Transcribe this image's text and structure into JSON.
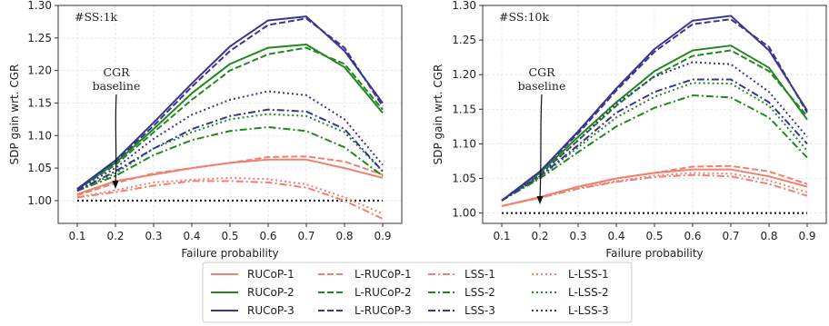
{
  "chart_data": [
    {
      "type": "line",
      "panel_label": "#SS:1k",
      "annotation": [
        "CGR",
        "baseline"
      ],
      "xlabel": "Failure probability",
      "ylabel": "SDP gain wrt. CGR",
      "x": [
        0.1,
        0.2,
        0.3,
        0.4,
        0.5,
        0.6,
        0.7,
        0.8,
        0.9
      ],
      "xlim": [
        0.05,
        0.95
      ],
      "ylim": [
        0.965,
        1.3
      ],
      "xticks": [
        "0.1",
        "0.2",
        "0.3",
        "0.4",
        "0.5",
        "0.6",
        "0.7",
        "0.8",
        "0.9"
      ],
      "yticks": [
        "1.00",
        "1.05",
        "1.10",
        "1.15",
        "1.20",
        "1.25",
        "1.30"
      ],
      "grid": true,
      "baseline": 1.0,
      "series": [
        {
          "name": "RUCoP-1",
          "color": "#f08070",
          "style": "solid",
          "values": [
            1.01,
            1.03,
            1.04,
            1.05,
            1.058,
            1.063,
            1.063,
            1.05,
            1.035
          ]
        },
        {
          "name": "L-RUCoP-1",
          "color": "#f08070",
          "style": "dashed",
          "values": [
            1.008,
            1.027,
            1.042,
            1.05,
            1.058,
            1.067,
            1.068,
            1.06,
            1.04
          ]
        },
        {
          "name": "LSS-1",
          "color": "#f08070",
          "style": "dashdot",
          "values": [
            1.005,
            1.013,
            1.023,
            1.03,
            1.03,
            1.028,
            1.02,
            1.0,
            0.972
          ]
        },
        {
          "name": "L-LSS-1",
          "color": "#f08070",
          "style": "dotted",
          "values": [
            1.005,
            1.016,
            1.028,
            1.032,
            1.035,
            1.033,
            1.025,
            1.005,
            0.98
          ]
        },
        {
          "name": "RUCoP-2",
          "color": "#22881e",
          "style": "solid",
          "values": [
            1.017,
            1.058,
            1.11,
            1.165,
            1.21,
            1.235,
            1.24,
            1.205,
            1.135
          ]
        },
        {
          "name": "L-RUCoP-2",
          "color": "#22881e",
          "style": "dashed",
          "values": [
            1.017,
            1.055,
            1.105,
            1.155,
            1.2,
            1.225,
            1.235,
            1.21,
            1.14
          ]
        },
        {
          "name": "LSS-2",
          "color": "#22881e",
          "style": "dashdot",
          "values": [
            1.015,
            1.038,
            1.07,
            1.093,
            1.107,
            1.113,
            1.107,
            1.082,
            1.038
          ]
        },
        {
          "name": "L-LSS-2",
          "color": "#22881e",
          "style": "dotted",
          "values": [
            1.015,
            1.042,
            1.08,
            1.105,
            1.125,
            1.133,
            1.13,
            1.105,
            1.045
          ]
        },
        {
          "name": "RUCoP-3",
          "color": "#3a3590",
          "style": "solid",
          "values": [
            1.018,
            1.062,
            1.12,
            1.18,
            1.237,
            1.277,
            1.283,
            1.23,
            1.15
          ]
        },
        {
          "name": "L-RUCoP-3",
          "color": "#3a3590",
          "style": "dashed",
          "values": [
            1.018,
            1.06,
            1.115,
            1.175,
            1.23,
            1.27,
            1.28,
            1.235,
            1.145
          ]
        },
        {
          "name": "LSS-3",
          "color": "#3a3590",
          "style": "dashdot",
          "values": [
            1.015,
            1.045,
            1.08,
            1.11,
            1.13,
            1.14,
            1.137,
            1.11,
            1.045
          ]
        },
        {
          "name": "L-LSS-3",
          "color": "#3a3590",
          "style": "dotted",
          "values": [
            1.017,
            1.05,
            1.095,
            1.132,
            1.155,
            1.168,
            1.162,
            1.125,
            1.055
          ]
        }
      ]
    },
    {
      "type": "line",
      "panel_label": "#SS:10k",
      "annotation": [
        "CGR",
        "baseline"
      ],
      "xlabel": "Failure probability",
      "ylabel": "SDP gain wrt. CGR",
      "x": [
        0.1,
        0.2,
        0.3,
        0.4,
        0.5,
        0.6,
        0.7,
        0.8,
        0.9
      ],
      "xlim": [
        0.05,
        0.95
      ],
      "ylim": [
        0.985,
        1.3
      ],
      "xticks": [
        "0.1",
        "0.2",
        "0.3",
        "0.4",
        "0.5",
        "0.6",
        "0.7",
        "0.8",
        "0.9"
      ],
      "yticks": [
        "1.00",
        "1.05",
        "1.10",
        "1.15",
        "1.20",
        "1.25",
        "1.30"
      ],
      "grid": true,
      "baseline": 1.0,
      "series": [
        {
          "name": "RUCoP-1",
          "color": "#f08070",
          "style": "solid",
          "values": [
            1.01,
            1.023,
            1.038,
            1.05,
            1.058,
            1.063,
            1.063,
            1.053,
            1.038
          ]
        },
        {
          "name": "L-RUCoP-1",
          "color": "#f08070",
          "style": "dashed",
          "values": [
            1.01,
            1.023,
            1.038,
            1.05,
            1.058,
            1.067,
            1.068,
            1.06,
            1.042
          ]
        },
        {
          "name": "LSS-1",
          "color": "#f08070",
          "style": "dashdot",
          "values": [
            1.01,
            1.022,
            1.035,
            1.045,
            1.052,
            1.055,
            1.053,
            1.042,
            1.025
          ]
        },
        {
          "name": "L-LSS-1",
          "color": "#f08070",
          "style": "dotted",
          "values": [
            1.01,
            1.022,
            1.036,
            1.046,
            1.054,
            1.058,
            1.057,
            1.047,
            1.03
          ]
        },
        {
          "name": "RUCoP-2",
          "color": "#22881e",
          "style": "solid",
          "values": [
            1.018,
            1.058,
            1.11,
            1.16,
            1.205,
            1.235,
            1.242,
            1.21,
            1.135
          ]
        },
        {
          "name": "L-RUCoP-2",
          "color": "#22881e",
          "style": "dashed",
          "values": [
            1.018,
            1.056,
            1.105,
            1.155,
            1.198,
            1.227,
            1.235,
            1.205,
            1.14
          ]
        },
        {
          "name": "LSS-2",
          "color": "#22881e",
          "style": "dashdot",
          "values": [
            1.018,
            1.05,
            1.088,
            1.125,
            1.152,
            1.17,
            1.167,
            1.138,
            1.08
          ]
        },
        {
          "name": "L-LSS-2",
          "color": "#22881e",
          "style": "dotted",
          "values": [
            1.018,
            1.052,
            1.095,
            1.138,
            1.168,
            1.188,
            1.187,
            1.155,
            1.09
          ]
        },
        {
          "name": "RUCoP-3",
          "color": "#3a3590",
          "style": "solid",
          "values": [
            1.018,
            1.06,
            1.118,
            1.18,
            1.237,
            1.278,
            1.285,
            1.235,
            1.148
          ]
        },
        {
          "name": "L-RUCoP-3",
          "color": "#3a3590",
          "style": "dashed",
          "values": [
            1.018,
            1.06,
            1.115,
            1.177,
            1.233,
            1.273,
            1.28,
            1.24,
            1.145
          ]
        },
        {
          "name": "LSS-3",
          "color": "#3a3590",
          "style": "dashdot",
          "values": [
            1.018,
            1.053,
            1.098,
            1.145,
            1.175,
            1.193,
            1.193,
            1.16,
            1.1
          ]
        },
        {
          "name": "L-LSS-3",
          "color": "#3a3590",
          "style": "dotted",
          "values": [
            1.018,
            1.055,
            1.105,
            1.158,
            1.197,
            1.218,
            1.215,
            1.175,
            1.11
          ]
        }
      ]
    }
  ],
  "legend": {
    "placement": "bottom-center",
    "columns": [
      [
        "RUCoP-1",
        "RUCoP-2",
        "RUCoP-3"
      ],
      [
        "L-RUCoP-1",
        "L-RUCoP-2",
        "L-RUCoP-3"
      ],
      [
        "LSS-1",
        "LSS-2",
        "LSS-3"
      ],
      [
        "L-LSS-1",
        "L-LSS-2",
        "L-LSS-3"
      ]
    ]
  }
}
